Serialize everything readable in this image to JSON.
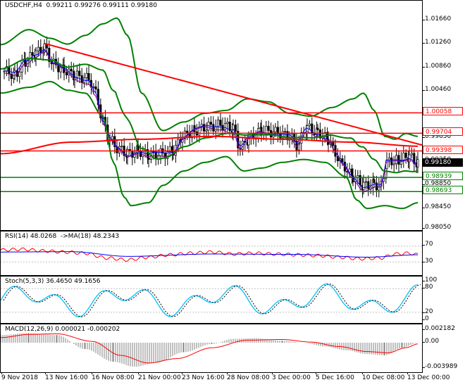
{
  "window": {
    "symbol": "USDCHF",
    "timeframe": "H4",
    "title": "USDCHF,H4  0.99211 0.99276 0.99111 0.99180"
  },
  "main_pane": {
    "title": "USDCHF,H4  0.99211 0.99276 0.99111 0.99180",
    "price_ticks": [
      "1.01660",
      "1.01260",
      "1.00860",
      "1.00460",
      "0.99650",
      "0.99250",
      "0.98850",
      "0.98450",
      "0.98050"
    ],
    "badges": [
      {
        "label": "1.00058",
        "bg": "#ffffff",
        "fg": "#ff0000",
        "line_color": "#ff0000"
      },
      {
        "label": "0.99704",
        "bg": "#ffffff",
        "fg": "#ff0000",
        "line_color": "#ff0000"
      },
      {
        "label": "0.99398",
        "bg": "#ffffff",
        "fg": "#ff0000",
        "line_color": "#ff0000"
      },
      {
        "label": "0.99180",
        "bg": "#000000",
        "fg": "#ffffff",
        "line_color": "#000000"
      },
      {
        "label": "0.98939",
        "bg": "#ffffff",
        "fg": "#008000",
        "line_color": "#008000"
      },
      {
        "label": "0.98693",
        "bg": "#ffffff",
        "fg": "#008000",
        "line_color": "#008000"
      }
    ]
  },
  "rsi_pane": {
    "title": "RSI(14) 48.0268  ->MA(18) 48.2343",
    "ticks": [
      "70",
      "30"
    ],
    "rsi_value": "48.0268",
    "ma_value": "48.2343"
  },
  "stoch_pane": {
    "title": "Stoch(5,3,3) 36.4650 49.1656",
    "ticks": [
      "100",
      "80",
      "20",
      "0"
    ]
  },
  "macd_pane": {
    "title": "MACD(12,26,9) 0.000021 -0.000202",
    "ticks": [
      "0.002182",
      "0.00",
      "-0.003989"
    ]
  },
  "x_axis": {
    "labels": [
      "9 Nov 2018",
      "13 Nov 16:00",
      "16 Nov 08:00",
      "21 Nov 00:00",
      "23 Nov 16:00",
      "28 Nov 08:00",
      "3 Dec 00:00",
      "5 Dec 16:00",
      "10 Dec 08:00",
      "13 Dec 00:00"
    ]
  },
  "colors": {
    "bull_candle": "#000000",
    "bear_candle": "#000000",
    "bollinger": "#008000",
    "trendline": "#ff0000",
    "ma_fast": "#0000ff",
    "ma_slow": "#800080",
    "rsi_line": "#ff0000",
    "rsi_ma": "#0000ff",
    "stoch_main": "#00bfff",
    "stoch_signal": "#000000",
    "macd_line": "#ff0000",
    "macd_hist": "#808080"
  },
  "chart_data": [
    {
      "type": "candlestick",
      "title": "USDCHF,H4",
      "ohlc_last": {
        "open": 0.99211,
        "high": 0.99276,
        "low": 0.99111,
        "close": 0.9918
      },
      "ylim": [
        0.9789,
        1.0186
      ],
      "x": [
        "9 Nov 2018",
        "13 Nov 16:00",
        "16 Nov 08:00",
        "21 Nov 00:00",
        "23 Nov 16:00",
        "28 Nov 08:00",
        "3 Dec 00:00",
        "5 Dec 16:00",
        "10 Dec 08:00",
        "13 Dec 00:00"
      ],
      "approx_close": [
        1.0078,
        1.0088,
        1.0062,
        0.9932,
        0.995,
        0.9975,
        0.9972,
        0.994,
        0.9878,
        0.9918
      ],
      "horizontal_levels": {
        "resistance": [
          1.00058,
          0.99704,
          0.99398
        ],
        "support": [
          0.98939,
          0.98693
        ]
      },
      "trendline": {
        "from": {
          "x": "13 Nov 00:00",
          "y": 1.0125
        },
        "to": {
          "x": "13 Dec 08:00",
          "y": 0.9952
        }
      },
      "indicators": [
        "Bollinger Bands",
        "Moving Averages"
      ]
    },
    {
      "type": "line",
      "title": "RSI(14)",
      "series": [
        {
          "name": "RSI(14)",
          "last": 48.0268
        },
        {
          "name": "MA(18)",
          "last": 48.2343
        }
      ],
      "ylim": [
        0,
        100
      ],
      "levels": [
        70,
        30
      ]
    },
    {
      "type": "line",
      "title": "Stoch(5,3,3)",
      "series": [
        {
          "name": "%K",
          "last": 36.465
        },
        {
          "name": "%D",
          "last": 49.1656
        }
      ],
      "ylim": [
        0,
        100
      ],
      "levels": [
        80,
        20
      ]
    },
    {
      "type": "bar",
      "title": "MACD(12,26,9)",
      "series": [
        {
          "name": "MACD",
          "last": 2.1e-05
        },
        {
          "name": "Signal",
          "last": -0.000202
        }
      ],
      "ylim": [
        -0.003989,
        0.002182
      ]
    }
  ]
}
